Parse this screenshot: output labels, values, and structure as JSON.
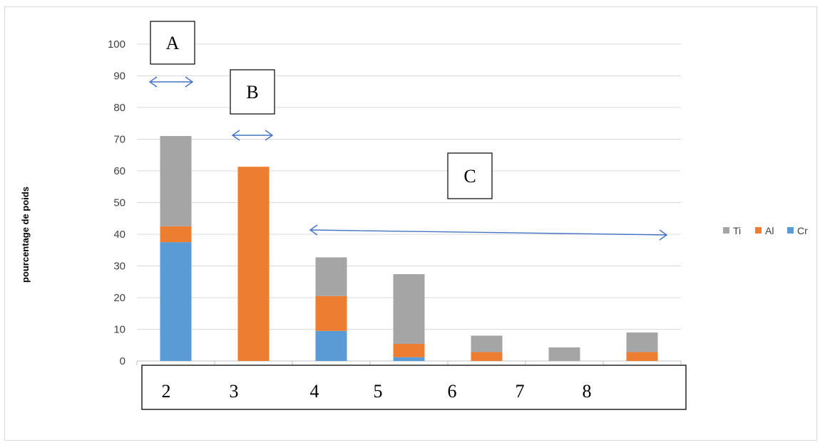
{
  "chart_data": {
    "type": "bar",
    "stacked": true,
    "categories": [
      "2",
      "3",
      "4",
      "5",
      "6",
      "7",
      "8"
    ],
    "series": [
      {
        "name": "Cr",
        "color": "#5b9bd5",
        "values": [
          37.5,
          0,
          9.5,
          1.2,
          0,
          0,
          0
        ]
      },
      {
        "name": "Al",
        "color": "#ed7d31",
        "values": [
          5,
          61.3,
          11,
          4.2,
          2.8,
          0,
          2.8
        ]
      },
      {
        "name": "Ti",
        "color": "#a5a5a5",
        "values": [
          28.5,
          0,
          12.2,
          22,
          5.2,
          4.3,
          6.2
        ]
      }
    ],
    "ylabel": "pourcentage de poids",
    "ylim": [
      0,
      100
    ],
    "yticks": [
      0,
      10,
      20,
      30,
      40,
      50,
      60,
      70,
      80,
      90,
      100
    ],
    "grid": true,
    "legend": "right",
    "annotations": [
      {
        "label": "A",
        "span": [
          "2",
          "2"
        ]
      },
      {
        "label": "B",
        "span": [
          "3",
          "3"
        ]
      },
      {
        "label": "C",
        "span": [
          "4",
          "8"
        ]
      }
    ],
    "axis_box_labels": [
      "2",
      "3",
      "4",
      "5",
      "6",
      "7",
      "8"
    ]
  }
}
